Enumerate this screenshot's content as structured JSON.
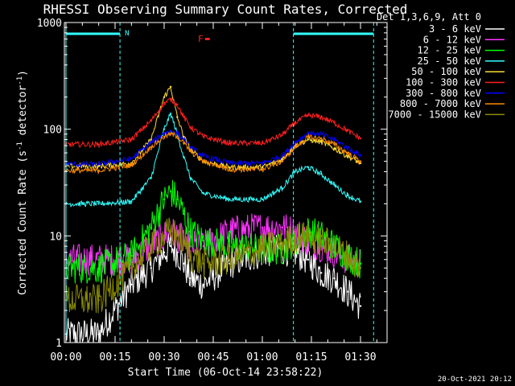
{
  "chart_data": {
    "type": "line",
    "title": "RHESSI Observing Summary Count Rates, Corrected",
    "xlabel": "Start Time (06-Oct-14 23:58:22)",
    "ylabel": "Corrected Count Rate (s⁻¹ detector⁻¹)",
    "ylabel_parts": [
      "Corrected Count Rate (s",
      "-1",
      " detector",
      "-1",
      ")"
    ],
    "y_scale": "log",
    "ylim": [
      1,
      1000
    ],
    "y_ticks": [
      1,
      10,
      100,
      1000
    ],
    "y_tick_labels": [
      "1",
      "10",
      "100",
      "1000"
    ],
    "x_unit": "minutes from 00:00",
    "xlim": [
      0,
      100
    ],
    "x_ticks": [
      0,
      15,
      30,
      45,
      60,
      75,
      90
    ],
    "x_tick_labels": [
      "00:00",
      "00:15",
      "00:30",
      "00:45",
      "01:00",
      "01:15",
      "01:30"
    ],
    "legend_title": "Det 1,3,6,9, Att 0",
    "legend_position": "top-right, outside plot",
    "footer": "20-Oct-2021 20:12",
    "grid": false,
    "annotations": {
      "night_label": "N",
      "night_intervals": [
        [
          0,
          16.5
        ],
        [
          69.5,
          94
        ]
      ],
      "flare_label": "F",
      "flare_interval": [
        41.8,
        43.2
      ]
    },
    "x": [
      0,
      10,
      20,
      26,
      30,
      32,
      34,
      36,
      38,
      42,
      50,
      60,
      66,
      70,
      74,
      78,
      82,
      86,
      90
    ],
    "series": [
      {
        "name": "3 - 6 keV",
        "color": "#ffffff",
        "values": [
          1.2,
          1.2,
          3.5,
          5,
          7,
          8,
          7,
          5.5,
          4,
          3.5,
          5.5,
          7,
          7.5,
          7,
          6,
          4.5,
          4,
          3,
          2.2
        ]
      },
      {
        "name": "6 - 12 keV",
        "color": "#ff33ff",
        "values": [
          6,
          6,
          6,
          8,
          10,
          11,
          10,
          9,
          8,
          8,
          11,
          12,
          12,
          11,
          9,
          8,
          7,
          6,
          5.5
        ]
      },
      {
        "name": "12 - 25 keV",
        "color": "#00ff00",
        "values": [
          5,
          5,
          6.5,
          12,
          22,
          26,
          22,
          16,
          11,
          9,
          8,
          7.5,
          7.5,
          9,
          11,
          10,
          8,
          6.5,
          5.5
        ]
      },
      {
        "name": "25 - 50 keV",
        "color": "#33ffff",
        "values": [
          20,
          20,
          21,
          35,
          100,
          140,
          90,
          55,
          35,
          25,
          22,
          22,
          28,
          40,
          44,
          38,
          30,
          24,
          21
        ]
      },
      {
        "name": "50 - 100 keV",
        "color": "#ffdd33",
        "values": [
          45,
          45,
          48,
          80,
          200,
          250,
          130,
          85,
          65,
          50,
          44,
          44,
          52,
          70,
          80,
          76,
          66,
          56,
          48
        ]
      },
      {
        "name": "100 - 300 keV",
        "color": "#ff2020",
        "values": [
          72,
          72,
          80,
          120,
          175,
          190,
          170,
          130,
          105,
          85,
          74,
          74,
          88,
          115,
          135,
          130,
          115,
          97,
          82
        ]
      },
      {
        "name": "300 - 800 keV",
        "color": "#0000ff",
        "values": [
          47,
          47,
          53,
          75,
          92,
          96,
          92,
          80,
          68,
          56,
          48,
          48,
          56,
          75,
          92,
          90,
          80,
          67,
          57
        ]
      },
      {
        "name": "800 - 7000 keV",
        "color": "#ff8c00",
        "values": [
          41,
          41,
          46,
          68,
          85,
          90,
          86,
          74,
          62,
          50,
          42,
          42,
          50,
          68,
          84,
          82,
          72,
          60,
          50
        ]
      },
      {
        "name": "7000 - 15000 keV",
        "color": "#8b8b00",
        "values": [
          2.5,
          2.5,
          5,
          8,
          10,
          11,
          10,
          8.5,
          6.5,
          5.5,
          6,
          7.5,
          8.5,
          9.5,
          10,
          9,
          8,
          6.5,
          5
        ]
      }
    ]
  }
}
